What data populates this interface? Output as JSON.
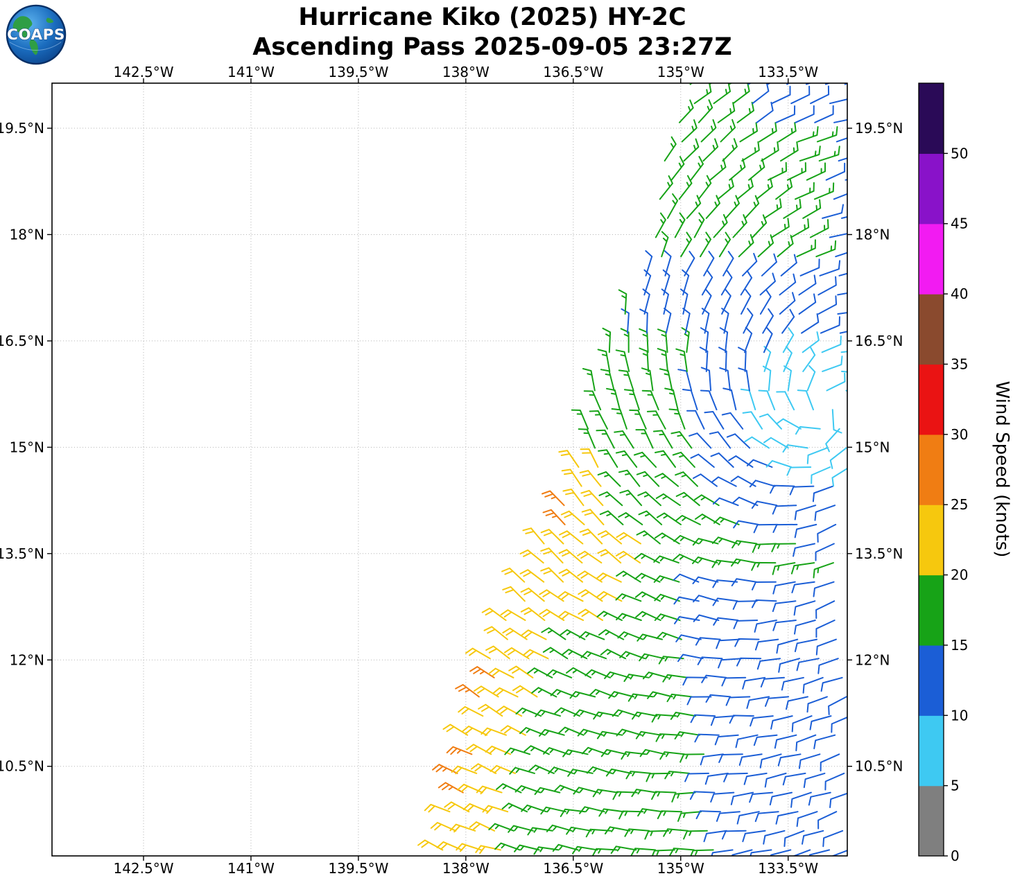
{
  "header": {
    "logo_text": "COAPS",
    "title_line1": "Hurricane Kiko (2025) HY-2C",
    "title_line2": "Ascending Pass 2025-09-05 23:27Z"
  },
  "chart_data": {
    "type": "wind_barb_map",
    "title": "Hurricane Kiko (2025) HY-2C",
    "subtitle": "Ascending Pass 2025-09-05 23:27Z",
    "storm_name": "Hurricane Kiko",
    "storm_year": "2025",
    "satellite": "HY-2C",
    "pass_direction": "Ascending",
    "pass_datetime_utc": "2025-09-05 23:27Z",
    "grid_on": true,
    "x_axis": {
      "range_lon": [
        -143.78,
        -132.68
      ],
      "label_sides": [
        "top",
        "bottom"
      ],
      "ticks": [
        {
          "lon": -142.5,
          "label": "142.5°W"
        },
        {
          "lon": -141.0,
          "label": "141°W"
        },
        {
          "lon": -139.5,
          "label": "139.5°W"
        },
        {
          "lon": -138.0,
          "label": "138°W"
        },
        {
          "lon": -136.5,
          "label": "136.5°W"
        },
        {
          "lon": -135.0,
          "label": "135°W"
        },
        {
          "lon": -133.5,
          "label": "133.5°W"
        }
      ]
    },
    "y_axis": {
      "range_lat": [
        9.24,
        20.14
      ],
      "label_sides": [
        "left",
        "right"
      ],
      "ticks": [
        {
          "lat": 19.5,
          "label": "19.5°N"
        },
        {
          "lat": 18.0,
          "label": "18°N"
        },
        {
          "lat": 16.5,
          "label": "16.5°N"
        },
        {
          "lat": 15.0,
          "label": "15°N"
        },
        {
          "lat": 13.5,
          "label": "13.5°N"
        },
        {
          "lat": 12.0,
          "label": "12°N"
        },
        {
          "lat": 10.5,
          "label": "10.5°N"
        }
      ]
    },
    "colorbar": {
      "label": "Wind Speed (knots)",
      "units": "knots",
      "tick_values": [
        0,
        5,
        10,
        15,
        20,
        25,
        30,
        35,
        40,
        45,
        50
      ],
      "bins": [
        {
          "range_kt": [
            0,
            5
          ],
          "color": "#7f7f7f"
        },
        {
          "range_kt": [
            5,
            10
          ],
          "color": "#3ec9f2"
        },
        {
          "range_kt": [
            10,
            15
          ],
          "color": "#1b5ed6"
        },
        {
          "range_kt": [
            15,
            20
          ],
          "color": "#17a317"
        },
        {
          "range_kt": [
            20,
            25
          ],
          "color": "#f6c80e"
        },
        {
          "range_kt": [
            25,
            30
          ],
          "color": "#f07d13"
        },
        {
          "range_kt": [
            30,
            35
          ],
          "color": "#ea1313"
        },
        {
          "range_kt": [
            35,
            40
          ],
          "color": "#8a4a2e"
        },
        {
          "range_kt": [
            40,
            45
          ],
          "color": "#f21bf2"
        },
        {
          "range_kt": [
            45,
            50
          ],
          "color": "#8912c9"
        },
        {
          "range_kt": [
            50,
            55
          ],
          "color": "#2a0a57"
        }
      ]
    },
    "wind_field": {
      "units": "knots",
      "barb_grid_spacing_deg": 0.27,
      "row_stagger_deg": 0.135,
      "swath_right_edge_lon": -132.62,
      "swath_left_edge_lon_lat": [
        [
          -138.4,
          9.24
        ],
        [
          -138.26,
          10.0
        ],
        [
          -138.16,
          10.5
        ],
        [
          -138.02,
          11.0
        ],
        [
          -137.87,
          11.5
        ],
        [
          -137.73,
          12.0
        ],
        [
          -137.53,
          12.5
        ],
        [
          -137.29,
          13.0
        ],
        [
          -137.05,
          13.5
        ],
        [
          -136.76,
          14.0
        ],
        [
          -136.56,
          14.5
        ],
        [
          -136.39,
          15.0
        ],
        [
          -136.32,
          15.5
        ],
        [
          -136.22,
          16.0
        ],
        [
          -135.98,
          16.5
        ],
        [
          -135.79,
          17.0
        ],
        [
          -135.5,
          17.5
        ],
        [
          -135.4,
          18.0
        ],
        [
          -135.35,
          18.5
        ],
        [
          -135.3,
          19.0
        ],
        [
          -135.1,
          19.5
        ],
        [
          -134.92,
          20.14
        ]
      ],
      "circulation_center": {
        "lon": -132.95,
        "lat": 15.55
      },
      "rotation_sense": "cyclonic_counterclockwise",
      "inflow_angle_deg": 18,
      "speed_regions_kt": [
        {
          "name": "light-core",
          "shape": "circle",
          "radius_deg": 1.05,
          "speed_kt": 8
        },
        {
          "name": "inner-ring",
          "shape": "annulus",
          "radius_deg": [
            1.05,
            1.95
          ],
          "speed_kt": 12
        },
        {
          "name": "north-blue-band",
          "lat_range": [
            16.55,
            17.45
          ],
          "lon_min": -135.75,
          "speed_kt": 12
        },
        {
          "name": "northeast-corner",
          "lat_min": 19.55,
          "lon_min": -134.1,
          "speed_kt": 12
        },
        {
          "name": "east-edge-strip",
          "lat_range": [
            17.55,
            19.6
          ],
          "lon_min": -133.05,
          "speed_kt": 12
        },
        {
          "name": "southeast-trades",
          "lat_max": 13.2,
          "lon_min_at_lat": {
            "base_lon": -134.9,
            "slope_per_deg": 0.1,
            "ref_lat": 13.2
          },
          "speed_kt": 12
        },
        {
          "name": "southwest-jet",
          "edge_band": true,
          "speed_kt": 22,
          "widths": [
            {
              "lat_range": [
                9.2,
                12.3
              ],
              "width_deg": 0.95
            },
            {
              "lat_range": [
                12.3,
                13.75
              ],
              "width_deg": 1.55
            },
            {
              "lat_range": [
                13.75,
                14.4
              ],
              "width_deg": 0.85
            },
            {
              "lat_range": [
                14.4,
                14.95
              ],
              "width_deg": 0.55
            }
          ]
        },
        {
          "name": "edge-maxima",
          "edge_band": true,
          "width_deg": 0.32,
          "speed_kt": 27,
          "lat_windows": [
            [
              13.65,
              14.3
            ],
            [
              11.4,
              12.0
            ],
            [
              10.1,
              10.8
            ]
          ]
        },
        {
          "name": "background",
          "speed_kt": 17
        }
      ]
    }
  }
}
